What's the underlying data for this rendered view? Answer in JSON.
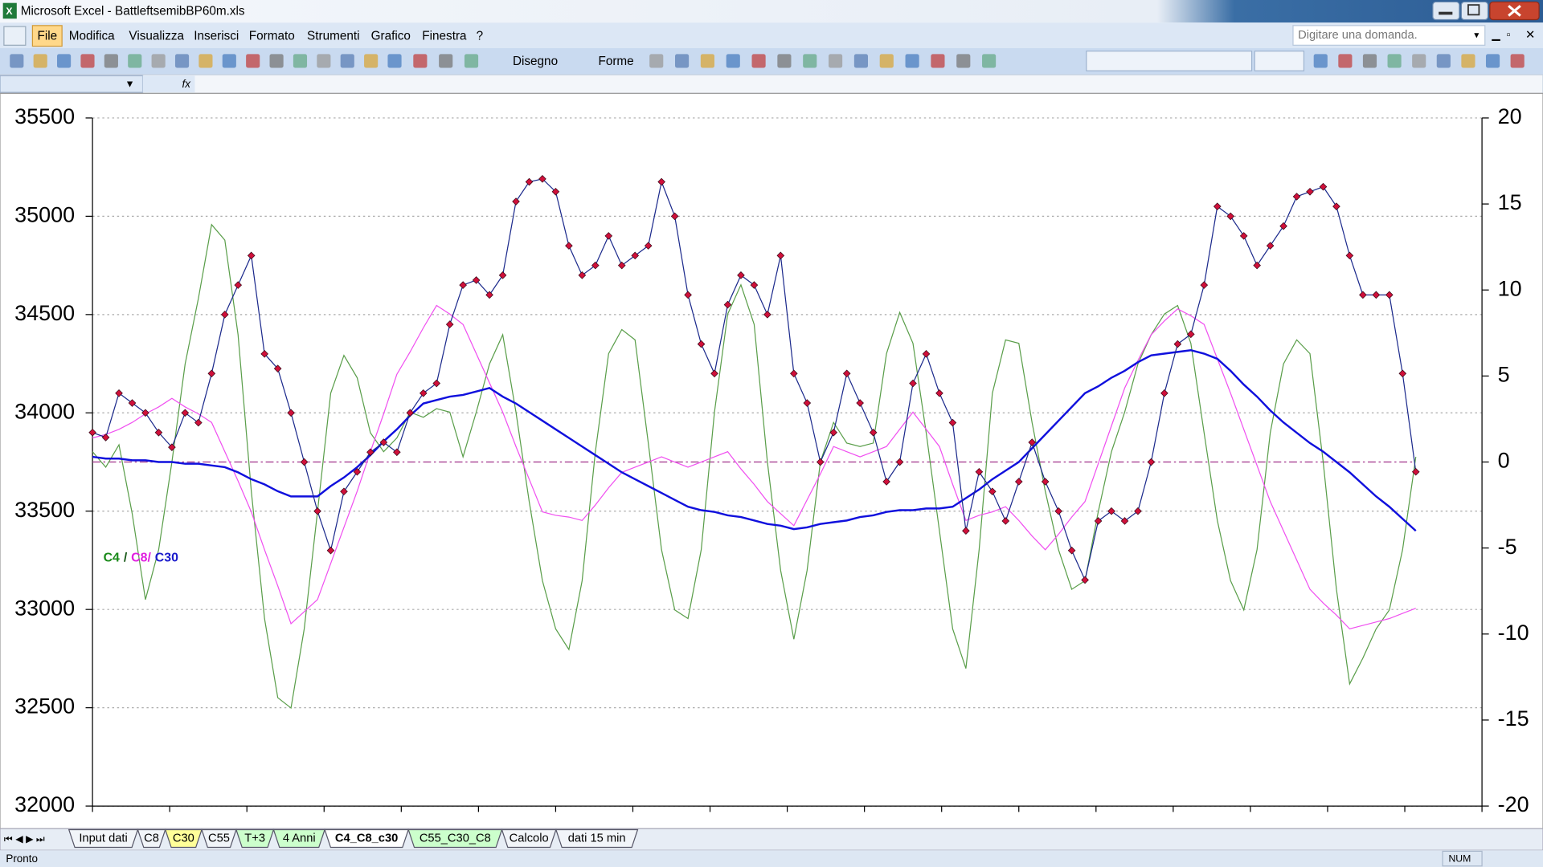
{
  "window": {
    "title": "Microsoft Excel - BattleftsemibBP60m.xls"
  },
  "menu": [
    "File",
    "Modifica",
    "Visualizza",
    "Inserisci",
    "Formato",
    "Strumenti",
    "Grafico",
    "Finestra",
    "?"
  ],
  "search_box": "Digitare una domanda.",
  "toolbar": {
    "draw": "Disegno",
    "shapes": "Forme"
  },
  "sheet_tabs": [
    {
      "label": "Input dati"
    },
    {
      "label": "C8"
    },
    {
      "label": "C30",
      "color": "#ffff99"
    },
    {
      "label": "C55"
    },
    {
      "label": "T+3",
      "color": "#ccffcc"
    },
    {
      "label": "4 Anni",
      "color": "#ccffcc"
    },
    {
      "label": "C4_C8_c30",
      "active": true
    },
    {
      "label": "C55_C30_C8",
      "color": "#ccffcc"
    },
    {
      "label": "Calcolo"
    },
    {
      "label": "dati 15 min"
    }
  ],
  "status": {
    "left": "Pronto",
    "right": "NUM"
  },
  "chart_data": {
    "type": "line",
    "categories": [
      null,
      null,
      null,
      null,
      null,
      null,
      null,
      null,
      null,
      null,
      null,
      null,
      null,
      null,
      null,
      null,
      null,
      null,
      null,
      null,
      null,
      null,
      null,
      null,
      null,
      null,
      null,
      null,
      null,
      null,
      null,
      null,
      null,
      null,
      null,
      null,
      null,
      null,
      null,
      null,
      null,
      null,
      null,
      null,
      null,
      null,
      null,
      null,
      null,
      null,
      null,
      null,
      null,
      null,
      null,
      null,
      null,
      null,
      null,
      null,
      null,
      null,
      null,
      null,
      null,
      null,
      null,
      null,
      null,
      null,
      null,
      null,
      null,
      null,
      null,
      null,
      null,
      null,
      null,
      null,
      null,
      null,
      null,
      null,
      null,
      null,
      null,
      null,
      null,
      null,
      null,
      null,
      null,
      null,
      null,
      null,
      null,
      null,
      null,
      null,
      null,
      null,
      null,
      null,
      null,
      null
    ],
    "ylim": [
      32000,
      35500
    ],
    "yticks": [
      32000,
      32500,
      33000,
      33500,
      34000,
      34500,
      35000,
      35500
    ],
    "y2lim": [
      -20,
      20
    ],
    "y2ticks": [
      -20,
      -15,
      -10,
      -5,
      0,
      5,
      10,
      15,
      20
    ],
    "grid": true,
    "hline": {
      "value": 0,
      "axis": "y2",
      "color": "#a0308a"
    },
    "annotations": [
      {
        "text": "C4",
        "color": "#1a8a1a"
      },
      {
        "text": "/",
        "color": "#1a5a1a"
      },
      {
        "text": "C8/",
        "color": "#e020e0"
      },
      {
        "text": "C30",
        "color": "#1a1acc"
      }
    ],
    "series": [
      {
        "color": "#5a9e4a",
        "axis": "y2",
        "width": 1,
        "values": [
          0.6,
          -0.3,
          1.0,
          -3.0,
          -8.0,
          -5.1,
          0,
          5.7,
          9.5,
          13.8,
          12.9,
          7.4,
          -1.7,
          -9.1,
          -13.7,
          -14.3,
          -9.7,
          -2.9,
          4.0,
          6.2,
          4.9,
          1.7,
          0.6,
          1.4,
          2.9,
          2.6,
          3.1,
          2.9,
          0.3,
          2.9,
          5.7,
          7.4,
          2.9,
          -2.3,
          -6.9,
          -9.7,
          -10.9,
          -6.9,
          0.6,
          6.3,
          7.7,
          7.1,
          1.1,
          -5.1,
          -8.6,
          -9.1,
          -5.1,
          2.9,
          8.6,
          10.3,
          8,
          0,
          -6.3,
          -10.3,
          -6.3,
          0,
          2.3,
          1.1,
          0.9,
          1.1,
          6.3,
          8.7,
          6.9,
          1.7,
          -4,
          -9.7,
          -12,
          -5.1,
          4,
          7.1,
          6.9,
          2.3,
          -1.7,
          -5.1,
          -7.4,
          -6.9,
          -2.9,
          0.6,
          2.9,
          5.7,
          7.4,
          8.6,
          9.1,
          6.9,
          1.7,
          -3.4,
          -6.9,
          -8.6,
          -5.1,
          1.7,
          5.7,
          7.1,
          6.3,
          0,
          -7.4,
          -12.9,
          -11.4,
          -9.7,
          -8.6,
          -5.1,
          0.3,
          null,
          null,
          null,
          null,
          null
        ]
      },
      {
        "color": "#f050f0",
        "axis": "y2",
        "width": 1,
        "values": [
          1.4,
          1.6,
          1.9,
          2.3,
          2.8,
          3.2,
          3.7,
          3.2,
          2.8,
          2.3,
          0.6,
          -1.1,
          -2.9,
          -5.1,
          -7.2,
          -9.4,
          -8.7,
          -8.0,
          -5.9,
          -3.8,
          -1.7,
          0.6,
          2.8,
          5.1,
          6.4,
          7.8,
          9.1,
          8.6,
          8.0,
          6.3,
          4.6,
          2.9,
          0.9,
          -1.0,
          -2.9,
          -3.1,
          -3.2,
          -3.4,
          -2.5,
          -1.5,
          -0.6,
          -0.3,
          0.0,
          0.3,
          0.0,
          -0.3,
          0.0,
          0.3,
          0.6,
          -0.4,
          -1.3,
          -2.3,
          -3.0,
          -3.7,
          -2.2,
          -0.7,
          0.9,
          0.6,
          0.3,
          0.6,
          0.9,
          1.9,
          2.9,
          1.9,
          0.9,
          -1.3,
          -3.4,
          -3.1,
          -2.9,
          -2.6,
          -3.4,
          -4.3,
          -5.1,
          -4.2,
          -3.2,
          -2.3,
          -0.1,
          2.1,
          4.3,
          5.9,
          7.4,
          8.2,
          8.9,
          8.5,
          8.0,
          6.0,
          4.0,
          1.9,
          -0.2,
          -2.3,
          -4.0,
          -5.7,
          -7.4,
          -8.2,
          -8.9,
          -9.7,
          -9.5,
          -9.3,
          -9.1,
          -8.8,
          -8.5,
          null,
          null,
          null,
          null,
          null
        ]
      },
      {
        "color": "#1010dd",
        "axis": "y2",
        "width": 2,
        "values": [
          0.3,
          0.2,
          0.2,
          0.1,
          0.1,
          0,
          0,
          -0.1,
          -0.1,
          -0.2,
          -0.3,
          -0.6,
          -1.0,
          -1.3,
          -1.7,
          -2.0,
          -2.0,
          -2.0,
          -1.4,
          -0.9,
          -0.3,
          0.4,
          1.2,
          1.9,
          2.7,
          3.4,
          3.6,
          3.8,
          3.9,
          4.1,
          4.3,
          3.8,
          3.4,
          2.9,
          2.4,
          1.9,
          1.4,
          0.9,
          0.4,
          -0.1,
          -0.6,
          -1.0,
          -1.4,
          -1.8,
          -2.2,
          -2.6,
          -2.8,
          -2.9,
          -3.1,
          -3.2,
          -3.4,
          -3.6,
          -3.7,
          -3.9,
          -3.8,
          -3.6,
          -3.5,
          -3.4,
          -3.2,
          -3.1,
          -2.9,
          -2.8,
          -2.8,
          -2.7,
          -2.7,
          -2.6,
          -2.1,
          -1.6,
          -1.0,
          -0.5,
          0,
          0.8,
          1.6,
          2.4,
          3.2,
          4.0,
          4.4,
          4.9,
          5.3,
          5.8,
          6.2,
          6.3,
          6.4,
          6.5,
          6.3,
          6.0,
          5.3,
          4.5,
          3.8,
          3.0,
          2.3,
          1.7,
          1.1,
          0.6,
          0,
          -0.6,
          -1.3,
          -2.0,
          -2.6,
          -3.3,
          -4.0,
          null,
          null,
          null,
          null,
          null
        ]
      },
      {
        "color": "#1c2a8c",
        "marker_color": "#d0103a",
        "axis": "y",
        "width": 1,
        "values": [
          33900,
          33875,
          34100,
          34050,
          34000,
          33900,
          33825,
          34000,
          33950,
          34200,
          34500,
          34650,
          34800,
          34300,
          34225,
          34000,
          33750,
          33500,
          33300,
          33600,
          33700,
          33800,
          33850,
          33800,
          34000,
          34100,
          34150,
          34450,
          34650,
          34675,
          34600,
          34700,
          35075,
          35175,
          35190,
          35125,
          34850,
          34700,
          34750,
          34900,
          34750,
          34800,
          34850,
          35175,
          35000,
          34600,
          34350,
          34200,
          34550,
          34700,
          34650,
          34500,
          34800,
          34200,
          34050,
          33750,
          33900,
          34200,
          34050,
          33900,
          33650,
          33750,
          34150,
          34300,
          34100,
          33950,
          33400,
          33700,
          33600,
          33450,
          33650,
          33850,
          33650,
          33500,
          33300,
          33150,
          33450,
          33500,
          33450,
          33500,
          33750,
          34100,
          34350,
          34400,
          34650,
          35050,
          35000,
          34900,
          34750,
          34850,
          34950,
          35100,
          35125,
          35150,
          35050,
          34800,
          34600,
          34600,
          34600,
          34200,
          33700,
          null,
          null,
          null,
          null,
          null
        ]
      }
    ]
  }
}
